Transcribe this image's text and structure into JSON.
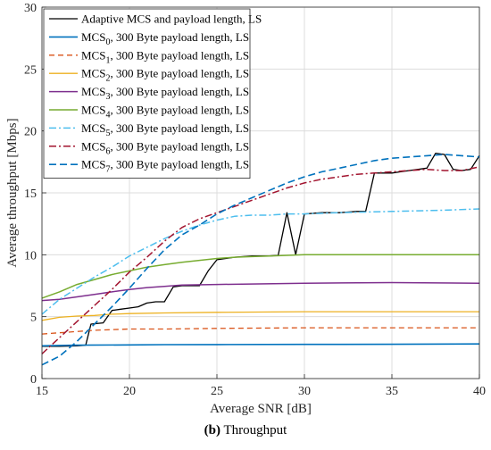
{
  "caption": {
    "label": "(b)",
    "text": "Throughput"
  },
  "chart_data": {
    "type": "line",
    "title": "",
    "xlabel": "Average SNR [dB]",
    "ylabel": "Average throughput [Mbps]",
    "xlim": [
      15,
      40
    ],
    "ylim": [
      0,
      30
    ],
    "xticks": [
      15,
      20,
      25,
      30,
      35,
      40
    ],
    "yticks": [
      0,
      5,
      10,
      15,
      20,
      25,
      30
    ],
    "grid": true,
    "legend_position": "top-left",
    "series": [
      {
        "name": "Adaptive MCS and payload length, LS",
        "legend_main": "Adaptive MCS and payload length, LS",
        "legend_sub": "",
        "legend_rest": "",
        "color": "#000000",
        "dash": "",
        "width": 1.3,
        "x": [
          15,
          16,
          17,
          17.5,
          17.8,
          18.5,
          19,
          19.5,
          20,
          20.5,
          21,
          21.5,
          22,
          22.5,
          23,
          23.5,
          24,
          24.5,
          25,
          26,
          27,
          28,
          28.5,
          29,
          29.5,
          30,
          31,
          32,
          33,
          33.5,
          34,
          34.5,
          35,
          35.5,
          36,
          37,
          37.5,
          38,
          38.5,
          39,
          39.5,
          40
        ],
        "y": [
          2.6,
          2.6,
          2.65,
          2.7,
          4.4,
          4.5,
          5.5,
          5.6,
          5.7,
          5.8,
          6.1,
          6.2,
          6.2,
          7.4,
          7.5,
          7.5,
          7.5,
          8.7,
          9.6,
          9.8,
          9.9,
          9.9,
          9.95,
          13.4,
          10.0,
          13.3,
          13.4,
          13.4,
          13.5,
          13.5,
          16.6,
          16.6,
          16.6,
          16.7,
          16.8,
          17.0,
          18.2,
          18.1,
          16.9,
          16.8,
          16.9,
          18.0
        ]
      },
      {
        "name": "MCS0, 300 Byte payload length, LS",
        "legend_main": "MCS",
        "legend_sub": "0",
        "legend_rest": ", 300 Byte payload length, LS",
        "color": "#0072bd",
        "dash": "",
        "width": 1.6,
        "x": [
          15,
          17,
          20,
          22,
          25,
          30,
          35,
          40
        ],
        "y": [
          2.65,
          2.7,
          2.72,
          2.74,
          2.75,
          2.76,
          2.77,
          2.8
        ]
      },
      {
        "name": "MCS1, 300 Byte payload length, LS",
        "legend_main": "MCS",
        "legend_sub": "1",
        "legend_rest": ", 300 Byte payload length, LS",
        "color": "#d95319",
        "dash": "6,4",
        "width": 1.3,
        "x": [
          15,
          16,
          17,
          18,
          20,
          22,
          25,
          30,
          35,
          40
        ],
        "y": [
          3.6,
          3.7,
          3.8,
          3.9,
          4.0,
          4.0,
          4.05,
          4.1,
          4.1,
          4.1
        ]
      },
      {
        "name": "MCS2, 300 Byte payload length, LS",
        "legend_main": "MCS",
        "legend_sub": "2",
        "legend_rest": ", 300 Byte payload length, LS",
        "color": "#edb120",
        "dash": "",
        "width": 1.3,
        "x": [
          15,
          16,
          17,
          18,
          19,
          20,
          22,
          25,
          30,
          35,
          40
        ],
        "y": [
          4.7,
          4.95,
          5.05,
          5.1,
          5.2,
          5.25,
          5.3,
          5.35,
          5.4,
          5.4,
          5.4
        ]
      },
      {
        "name": "MCS3, 300 Byte payload length, LS",
        "legend_main": "MCS",
        "legend_sub": "3",
        "legend_rest": ", 300 Byte payload length, LS",
        "color": "#7e2f8e",
        "dash": "",
        "width": 1.5,
        "x": [
          15,
          16,
          17,
          18,
          19,
          20,
          21,
          22,
          23,
          25,
          30,
          35,
          40
        ],
        "y": [
          6.3,
          6.4,
          6.6,
          6.8,
          7.0,
          7.2,
          7.35,
          7.45,
          7.55,
          7.6,
          7.7,
          7.75,
          7.7
        ]
      },
      {
        "name": "MCS4, 300 Byte payload length, LS",
        "legend_main": "MCS",
        "legend_sub": "4",
        "legend_rest": ", 300 Byte payload length, LS",
        "color": "#77ac30",
        "dash": "",
        "width": 1.5,
        "x": [
          15,
          16,
          17,
          18,
          19,
          20,
          21,
          22,
          23,
          24,
          25,
          26,
          27,
          28,
          30,
          35,
          40
        ],
        "y": [
          6.5,
          7.0,
          7.6,
          8.0,
          8.4,
          8.7,
          9.0,
          9.2,
          9.4,
          9.55,
          9.7,
          9.8,
          9.85,
          9.9,
          10.0,
          10.0,
          10.0
        ]
      },
      {
        "name": "MCS5, 300 Byte payload length, LS",
        "legend_main": "MCS",
        "legend_sub": "5",
        "legend_rest": ", 300 Byte payload length, LS",
        "color": "#4dbeee",
        "dash": "8,3,2,3",
        "width": 1.5,
        "x": [
          15,
          16,
          17,
          18,
          19,
          20,
          21,
          22,
          23,
          24,
          25,
          26,
          27,
          28,
          29,
          30,
          32,
          35,
          38,
          40
        ],
        "y": [
          5.2,
          6.4,
          7.3,
          8.2,
          9.0,
          9.9,
          10.6,
          11.3,
          11.9,
          12.4,
          12.8,
          13.1,
          13.2,
          13.2,
          13.3,
          13.3,
          13.4,
          13.5,
          13.6,
          13.7
        ]
      },
      {
        "name": "MCS6, 300 Byte payload length, LS",
        "legend_main": "MCS",
        "legend_sub": "6",
        "legend_rest": ", 300 Byte payload length, LS",
        "color": "#a2142f",
        "dash": "8,3,2,3",
        "width": 1.5,
        "x": [
          15,
          16,
          17,
          18,
          19,
          20,
          21,
          22,
          23,
          24,
          25,
          26,
          27,
          28,
          29,
          30,
          31,
          32,
          33,
          34,
          35,
          36,
          37,
          38,
          39,
          40
        ],
        "y": [
          2.0,
          3.3,
          4.6,
          5.9,
          7.2,
          8.6,
          9.8,
          11.1,
          12.2,
          12.9,
          13.4,
          13.9,
          14.4,
          14.9,
          15.4,
          15.8,
          16.1,
          16.3,
          16.5,
          16.6,
          16.7,
          16.8,
          16.9,
          16.8,
          16.8,
          17.1
        ]
      },
      {
        "name": "MCS7, 300 Byte payload length, LS",
        "legend_main": "MCS",
        "legend_sub": "7",
        "legend_rest": ", 300 Byte payload length, LS",
        "color": "#0072bd",
        "dash": "8,4",
        "width": 1.6,
        "x": [
          15,
          16,
          17,
          18,
          19,
          20,
          21,
          22,
          23,
          24,
          25,
          26,
          27,
          28,
          29,
          30,
          31,
          32,
          33,
          34,
          35,
          36,
          37,
          38,
          39,
          40
        ],
        "y": [
          1.1,
          1.8,
          3.0,
          4.4,
          5.8,
          7.3,
          8.9,
          10.4,
          11.6,
          12.4,
          13.3,
          14.0,
          14.6,
          15.2,
          15.8,
          16.3,
          16.7,
          17.0,
          17.3,
          17.6,
          17.8,
          17.9,
          18.0,
          18.1,
          18.0,
          17.9
        ]
      }
    ]
  }
}
